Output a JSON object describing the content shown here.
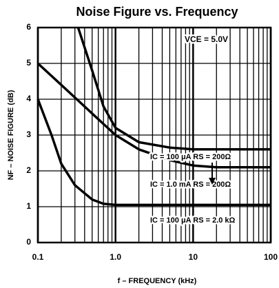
{
  "chart_data": {
    "type": "line",
    "title": "Noise Figure vs. Frequency",
    "xlabel": "f – FREQUENCY (kHz)",
    "ylabel": "NF – NOISE FIGURE (dB)",
    "annotations": [
      "VCE = 5.0V"
    ],
    "xlog": true,
    "grid": true,
    "xlim": [
      0.1,
      100
    ],
    "xticks": [
      0.1,
      {
        "value": 1,
        "label": "1.0"
      },
      10,
      100
    ],
    "ylim": [
      0,
      6
    ],
    "yticks": [
      0,
      1,
      2,
      3,
      4,
      5,
      6
    ],
    "series": [
      {
        "name": "IC = 100 μA RS = 200Ω",
        "color": "#000000",
        "x": [
          0.33,
          0.5,
          0.7,
          1,
          2,
          5,
          10,
          100
        ],
        "values": [
          6,
          4.8,
          3.8,
          3.2,
          2.8,
          2.65,
          2.6,
          2.6
        ]
      },
      {
        "name": "IC = 1.0 mA RS = 200Ω",
        "color": "#000000",
        "x": [
          0.1,
          0.2,
          0.5,
          1,
          2,
          5,
          10,
          20,
          100
        ],
        "values": [
          5.0,
          4.4,
          3.6,
          3.0,
          2.6,
          2.3,
          2.15,
          2.1,
          2.1
        ]
      },
      {
        "name": "IC = 100 μA RS = 2.0 kΩ",
        "color": "#000000",
        "x": [
          0.1,
          0.15,
          0.2,
          0.3,
          0.5,
          0.7,
          1,
          100
        ],
        "values": [
          4.0,
          3.0,
          2.2,
          1.6,
          1.2,
          1.08,
          1.05,
          1.05
        ]
      }
    ]
  }
}
